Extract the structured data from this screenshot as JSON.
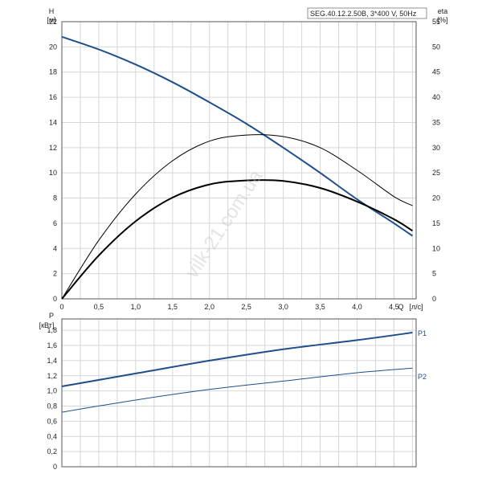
{
  "chart_data": [
    {
      "type": "line",
      "model": "SEG.40.12.2.50B, 3*400 V, 50Hz",
      "left_axis": {
        "label": "H",
        "unit": "[м]",
        "ticks": [
          0,
          2,
          4,
          6,
          8,
          10,
          12,
          14,
          16,
          18,
          20,
          22
        ],
        "ylim": [
          0,
          22
        ]
      },
      "right_axis": {
        "label": "eta",
        "unit": "[%]",
        "ticks": [
          0,
          5,
          10,
          15,
          20,
          25,
          30,
          35,
          40,
          45,
          50,
          55
        ],
        "ylim": [
          0,
          55
        ]
      },
      "x_axis": {
        "label": "Q",
        "unit": "[л/с]",
        "ticks": [
          "0",
          "0,5",
          "1,0",
          "1,5",
          "2,0",
          "2,5",
          "3,0",
          "3,5",
          "4,0",
          "4,5"
        ],
        "xlim": [
          0,
          4.8
        ]
      },
      "grid": true,
      "series": [
        {
          "axis": "left",
          "color": "#1f4e8c",
          "x": [
            0,
            0.5,
            1.0,
            1.5,
            2.0,
            2.5,
            3.0,
            3.5,
            4.0,
            4.5,
            4.75
          ],
          "y": [
            20.8,
            19.8,
            18.6,
            17.2,
            15.6,
            13.9,
            12.0,
            10.0,
            7.9,
            6.0,
            5.0
          ]
        },
        {
          "axis": "right",
          "color": "#000000",
          "x": [
            0,
            0.5,
            1.0,
            1.5,
            2.0,
            2.5,
            3.0,
            3.5,
            4.0,
            4.5,
            4.75
          ],
          "y": [
            0,
            11.6,
            20.8,
            27.4,
            31.3,
            32.5,
            32.2,
            30.0,
            25.5,
            20.3,
            18.5
          ]
        },
        {
          "axis": "right",
          "color": "#000000",
          "x": [
            0,
            0.5,
            1.0,
            1.5,
            2.0,
            2.5,
            3.0,
            3.5,
            4.0,
            4.5,
            4.75
          ],
          "y": [
            0,
            8.6,
            15.4,
            20.1,
            22.7,
            23.5,
            23.4,
            22.0,
            19.3,
            15.8,
            13.5
          ]
        }
      ]
    },
    {
      "type": "line",
      "left_axis": {
        "label": "P",
        "unit": "[кВт]",
        "ticks": [
          "0",
          "0,2",
          "0,4",
          "0,6",
          "0,8",
          "1,0",
          "1,2",
          "1,4",
          "1,6",
          "1,8"
        ],
        "ylim": [
          0,
          1.95
        ]
      },
      "x_axis": {
        "xlim": [
          0,
          4.8
        ]
      },
      "grid": true,
      "series": [
        {
          "name": "P1",
          "color": "#1f4e8c",
          "x": [
            0,
            1.0,
            2.0,
            3.0,
            4.0,
            4.75
          ],
          "y": [
            1.06,
            1.23,
            1.4,
            1.55,
            1.67,
            1.77
          ]
        },
        {
          "name": "P2",
          "color": "#1f4e8c",
          "x": [
            0,
            1.0,
            2.0,
            3.0,
            4.0,
            4.75
          ],
          "y": [
            0.72,
            0.88,
            1.02,
            1.13,
            1.24,
            1.3
          ]
        }
      ]
    }
  ],
  "watermark": "vilk-21.com.ua"
}
